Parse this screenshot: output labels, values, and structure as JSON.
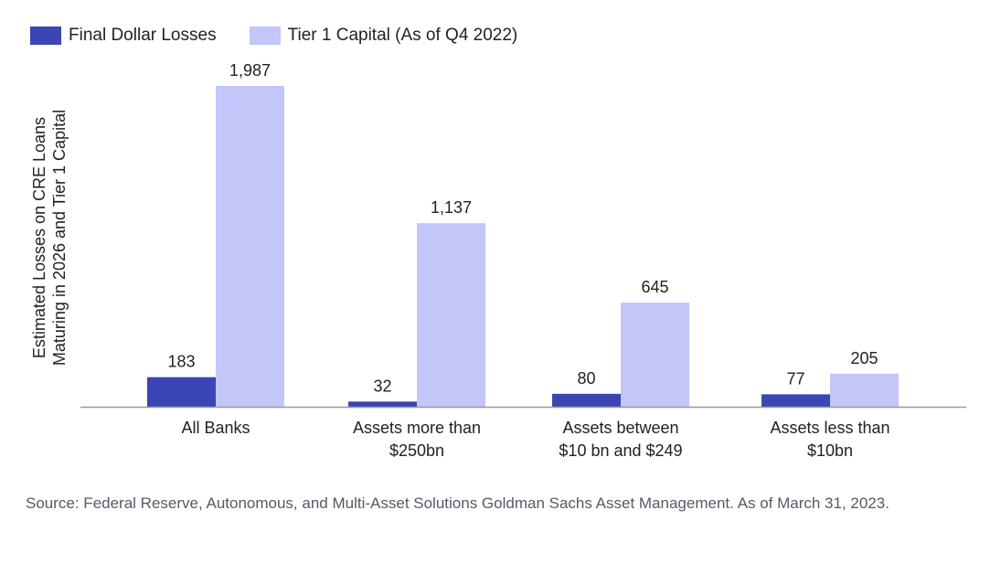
{
  "chart_data": {
    "type": "bar",
    "categories": [
      [
        "All Banks"
      ],
      [
        "Assets more than",
        "$250bn"
      ],
      [
        "Assets between",
        "$10 bn and $249"
      ],
      [
        "Assets less than",
        "$10bn"
      ]
    ],
    "series": [
      {
        "name": "Final Dollar Losses",
        "values": [
          183,
          32,
          80,
          77
        ],
        "labels": [
          "183",
          "32",
          "80",
          "77"
        ],
        "color": "#3b45b3"
      },
      {
        "name": "Tier 1 Capital (As of Q4 2022)",
        "values": [
          1987,
          1137,
          645,
          205
        ],
        "labels": [
          "1,987",
          "1,137",
          "645",
          "205"
        ],
        "color": "#c3c6f9"
      }
    ],
    "ylabel": [
      "Estimated Losses on CRE Loans",
      "Maturing in 2026 and Tier 1 Capital"
    ],
    "ylim": [
      0,
      2000
    ],
    "grid": false,
    "legend_position": "top-left",
    "axis_color": "#999999"
  },
  "source_note": "Source: Federal Reserve, Autonomous, and Multi-Asset Solutions Goldman Sachs Asset Management. As of March 31, 2023."
}
